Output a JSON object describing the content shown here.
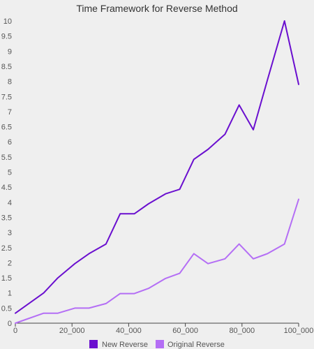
{
  "chart_data": {
    "type": "line",
    "title": "Time Framework for Reverse Method",
    "xlabel": "",
    "ylabel": "",
    "xlim": [
      0,
      100000
    ],
    "ylim": [
      0,
      10
    ],
    "x_ticks": [
      "0",
      "20_000",
      "40_000",
      "60_000",
      "80_000",
      "100_000"
    ],
    "y_ticks": [
      "0",
      "0.5",
      "1",
      "1.5",
      "2",
      "2.5",
      "3",
      "3.5",
      "4",
      "4.5",
      "5",
      "5.5",
      "6",
      "6.5",
      "7",
      "7.5",
      "8",
      "8.5",
      "9",
      "9.5",
      "10"
    ],
    "grid": false,
    "legend_position": "bottom",
    "x": [
      0,
      10000,
      15000,
      21000,
      26000,
      32000,
      37000,
      42000,
      47000,
      53000,
      58000,
      63000,
      68000,
      74000,
      79000,
      84000,
      89000,
      95000,
      100000
    ],
    "series": [
      {
        "name": "New Reverse",
        "color": "#6a0fcf",
        "values": [
          0.33,
          1.0,
          1.5,
          1.97,
          2.3,
          2.62,
          3.62,
          3.62,
          3.95,
          4.28,
          4.43,
          5.42,
          5.75,
          6.25,
          7.22,
          6.4,
          8.05,
          10.0,
          7.9
        ]
      },
      {
        "name": "Original Reverse",
        "color": "#b46ef5",
        "values": [
          0,
          0.33,
          0.33,
          0.5,
          0.5,
          0.65,
          0.98,
          0.98,
          1.15,
          1.48,
          1.65,
          2.3,
          1.97,
          2.13,
          2.62,
          2.13,
          2.3,
          2.62,
          4.1
        ]
      }
    ]
  }
}
